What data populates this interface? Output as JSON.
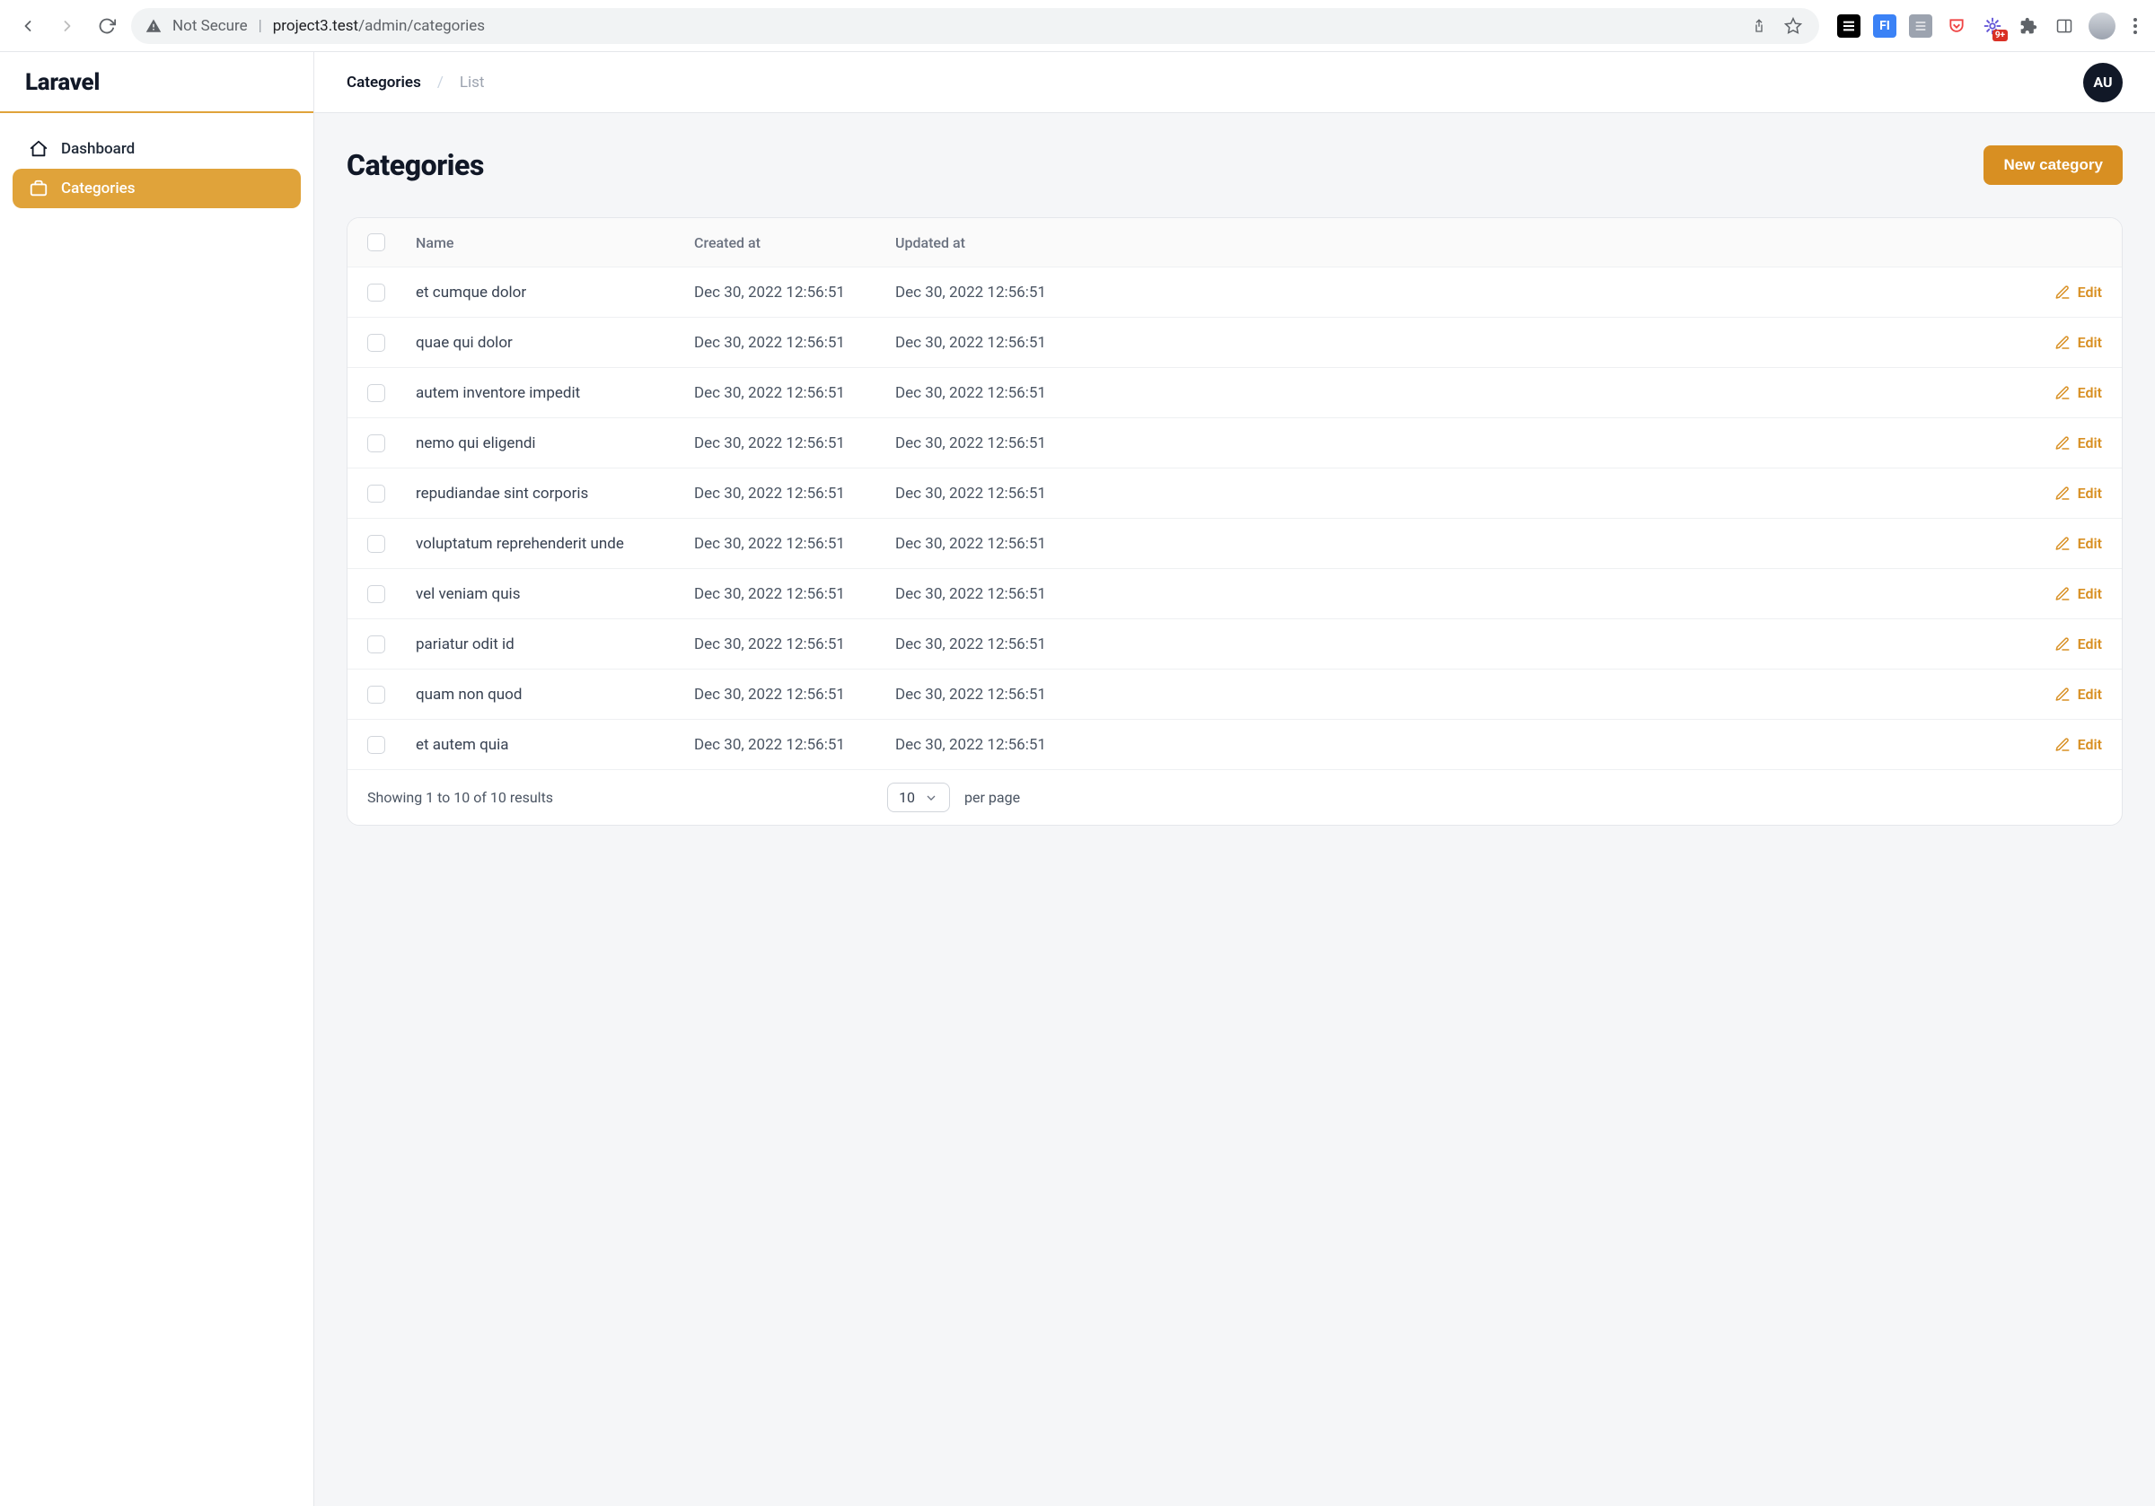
{
  "browser": {
    "not_secure_label": "Not Secure",
    "url_host": "project3.test",
    "url_path": "/admin/categories",
    "ext_badge": "9+",
    "ext_fi_label": "FI"
  },
  "brand": "Laravel",
  "sidebar": {
    "items": [
      {
        "label": "Dashboard"
      },
      {
        "label": "Categories"
      }
    ]
  },
  "breadcrumb": {
    "section": "Categories",
    "page": "List"
  },
  "user": {
    "initials": "AU"
  },
  "page": {
    "title": "Categories",
    "new_button": "New category"
  },
  "table": {
    "columns": {
      "name": "Name",
      "created": "Created at",
      "updated": "Updated at"
    },
    "edit_label": "Edit",
    "rows": [
      {
        "name": "et cumque dolor",
        "created": "Dec 30, 2022 12:56:51",
        "updated": "Dec 30, 2022 12:56:51"
      },
      {
        "name": "quae qui dolor",
        "created": "Dec 30, 2022 12:56:51",
        "updated": "Dec 30, 2022 12:56:51"
      },
      {
        "name": "autem inventore impedit",
        "created": "Dec 30, 2022 12:56:51",
        "updated": "Dec 30, 2022 12:56:51"
      },
      {
        "name": "nemo qui eligendi",
        "created": "Dec 30, 2022 12:56:51",
        "updated": "Dec 30, 2022 12:56:51"
      },
      {
        "name": "repudiandae sint corporis",
        "created": "Dec 30, 2022 12:56:51",
        "updated": "Dec 30, 2022 12:56:51"
      },
      {
        "name": "voluptatum reprehenderit unde",
        "created": "Dec 30, 2022 12:56:51",
        "updated": "Dec 30, 2022 12:56:51"
      },
      {
        "name": "vel veniam quis",
        "created": "Dec 30, 2022 12:56:51",
        "updated": "Dec 30, 2022 12:56:51"
      },
      {
        "name": "pariatur odit id",
        "created": "Dec 30, 2022 12:56:51",
        "updated": "Dec 30, 2022 12:56:51"
      },
      {
        "name": "quam non quod",
        "created": "Dec 30, 2022 12:56:51",
        "updated": "Dec 30, 2022 12:56:51"
      },
      {
        "name": "et autem quia",
        "created": "Dec 30, 2022 12:56:51",
        "updated": "Dec 30, 2022 12:56:51"
      }
    ],
    "footer": {
      "summary": "Showing 1 to 10 of 10 results",
      "page_size": "10",
      "per_page_label": "per page"
    }
  },
  "colors": {
    "accent": "#d88f22",
    "sidebar_active": "#e0a33a",
    "text_primary": "#111827",
    "text_muted": "#6b7280",
    "border": "#e5e7eb",
    "page_bg": "#f5f6f8"
  }
}
